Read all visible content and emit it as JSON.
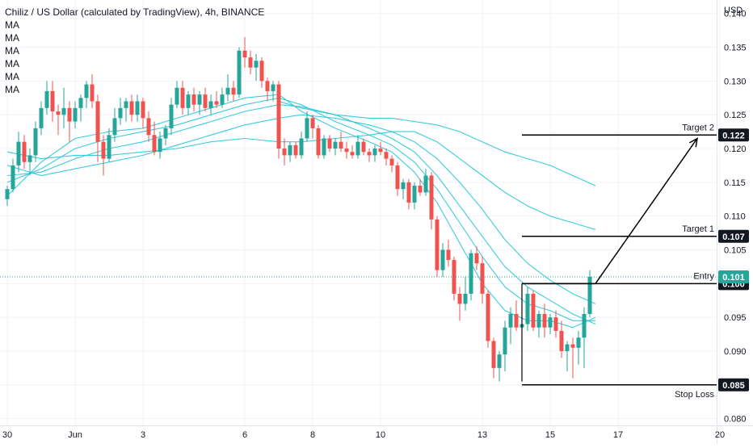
{
  "header": {
    "title": "Chiliz / US Dollar (calculated by TradingView), 4h, BINANCE",
    "indicators": [
      "MA",
      "MA",
      "MA",
      "MA",
      "MA",
      "MA"
    ]
  },
  "chart_data": {
    "type": "candlestick",
    "title": "Chiliz / US Dollar (calculated by TradingView), 4h, BINANCE",
    "y_unit_label": "USD",
    "ylim": [
      0.079,
      0.142
    ],
    "y_ticks": [
      "0.080",
      "0.085",
      "0.090",
      "0.095",
      "0.100",
      "0.105",
      "0.110",
      "0.115",
      "0.120",
      "0.125",
      "0.130",
      "0.135",
      "0.140"
    ],
    "x_ticks": [
      {
        "label": "30",
        "index": 0
      },
      {
        "label": "Jun",
        "index": 12
      },
      {
        "label": "3",
        "index": 24
      },
      {
        "label": "6",
        "index": 42
      },
      {
        "label": "8",
        "index": 54
      },
      {
        "label": "10",
        "index": 66
      },
      {
        "label": "13",
        "index": 84
      },
      {
        "label": "15",
        "index": 96
      },
      {
        "label": "17",
        "index": 108
      },
      {
        "label": "20",
        "index": 126
      }
    ],
    "current_price": 0.101,
    "current_price_label": "0.101",
    "candles": [
      [
        0.1125,
        0.1145,
        0.1115,
        0.114
      ],
      [
        0.114,
        0.1185,
        0.1135,
        0.1175
      ],
      [
        0.1175,
        0.1225,
        0.1165,
        0.121
      ],
      [
        0.121,
        0.122,
        0.117,
        0.118
      ],
      [
        0.118,
        0.12,
        0.116,
        0.119
      ],
      [
        0.119,
        0.124,
        0.118,
        0.123
      ],
      [
        0.123,
        0.127,
        0.122,
        0.126
      ],
      [
        0.126,
        0.13,
        0.125,
        0.1285
      ],
      [
        0.1285,
        0.13,
        0.124,
        0.1255
      ],
      [
        0.1255,
        0.1265,
        0.122,
        0.125
      ],
      [
        0.125,
        0.129,
        0.123,
        0.126
      ],
      [
        0.126,
        0.127,
        0.121,
        0.124
      ],
      [
        0.124,
        0.127,
        0.123,
        0.126
      ],
      [
        0.126,
        0.128,
        0.124,
        0.1275
      ],
      [
        0.1275,
        0.13,
        0.126,
        0.1295
      ],
      [
        0.1295,
        0.131,
        0.126,
        0.127
      ],
      [
        0.127,
        0.128,
        0.118,
        0.121
      ],
      [
        0.121,
        0.122,
        0.116,
        0.1185
      ],
      [
        0.1185,
        0.123,
        0.118,
        0.122
      ],
      [
        0.122,
        0.126,
        0.121,
        0.1245
      ],
      [
        0.1245,
        0.1275,
        0.1235,
        0.126
      ],
      [
        0.126,
        0.1275,
        0.124,
        0.127
      ],
      [
        0.127,
        0.128,
        0.124,
        0.125
      ],
      [
        0.125,
        0.128,
        0.124,
        0.127
      ],
      [
        0.127,
        0.1275,
        0.123,
        0.1245
      ],
      [
        0.1245,
        0.1255,
        0.121,
        0.122
      ],
      [
        0.122,
        0.124,
        0.119,
        0.1195
      ],
      [
        0.1195,
        0.1225,
        0.1185,
        0.1215
      ],
      [
        0.1215,
        0.1235,
        0.1205,
        0.123
      ],
      [
        0.123,
        0.1275,
        0.122,
        0.1265
      ],
      [
        0.1265,
        0.13,
        0.126,
        0.129
      ],
      [
        0.129,
        0.13,
        0.125,
        0.126
      ],
      [
        0.126,
        0.1285,
        0.125,
        0.128
      ],
      [
        0.128,
        0.129,
        0.1255,
        0.1265
      ],
      [
        0.1265,
        0.1285,
        0.125,
        0.128
      ],
      [
        0.128,
        0.129,
        0.1255,
        0.126
      ],
      [
        0.126,
        0.128,
        0.125,
        0.127
      ],
      [
        0.127,
        0.1285,
        0.126,
        0.1265
      ],
      [
        0.1265,
        0.129,
        0.126,
        0.128
      ],
      [
        0.128,
        0.131,
        0.127,
        0.129
      ],
      [
        0.129,
        0.13,
        0.127,
        0.128
      ],
      [
        0.128,
        0.135,
        0.1275,
        0.1345
      ],
      [
        0.1345,
        0.1365,
        0.132,
        0.1335
      ],
      [
        0.1335,
        0.1345,
        0.131,
        0.132
      ],
      [
        0.132,
        0.134,
        0.13,
        0.133
      ],
      [
        0.133,
        0.1335,
        0.129,
        0.13
      ],
      [
        0.13,
        0.1305,
        0.127,
        0.1285
      ],
      [
        0.1285,
        0.13,
        0.127,
        0.1295
      ],
      [
        0.1295,
        0.13,
        0.1185,
        0.12
      ],
      [
        0.12,
        0.1215,
        0.1175,
        0.119
      ],
      [
        0.119,
        0.121,
        0.118,
        0.1205
      ],
      [
        0.1205,
        0.121,
        0.1185,
        0.119
      ],
      [
        0.119,
        0.1225,
        0.1185,
        0.1215
      ],
      [
        0.1215,
        0.1255,
        0.121,
        0.1245
      ],
      [
        0.1245,
        0.125,
        0.1215,
        0.123
      ],
      [
        0.123,
        0.1235,
        0.1185,
        0.119
      ],
      [
        0.119,
        0.122,
        0.1185,
        0.1215
      ],
      [
        0.1215,
        0.122,
        0.1195,
        0.12
      ],
      [
        0.12,
        0.1215,
        0.119,
        0.121
      ],
      [
        0.121,
        0.1225,
        0.1195,
        0.12
      ],
      [
        0.12,
        0.121,
        0.1185,
        0.1195
      ],
      [
        0.1195,
        0.1205,
        0.1185,
        0.119
      ],
      [
        0.119,
        0.122,
        0.1185,
        0.121
      ],
      [
        0.121,
        0.1215,
        0.119,
        0.1195
      ],
      [
        0.1195,
        0.12,
        0.118,
        0.119
      ],
      [
        0.119,
        0.1205,
        0.118,
        0.12
      ],
      [
        0.12,
        0.121,
        0.119,
        0.1195
      ],
      [
        0.1195,
        0.12,
        0.1175,
        0.1185
      ],
      [
        0.1185,
        0.119,
        0.1165,
        0.1175
      ],
      [
        0.1175,
        0.118,
        0.113,
        0.114
      ],
      [
        0.114,
        0.1155,
        0.1125,
        0.115
      ],
      [
        0.115,
        0.1155,
        0.111,
        0.112
      ],
      [
        0.112,
        0.115,
        0.111,
        0.1145
      ],
      [
        0.1145,
        0.1155,
        0.113,
        0.1135
      ],
      [
        0.1135,
        0.117,
        0.113,
        0.116
      ],
      [
        0.116,
        0.1165,
        0.108,
        0.1095
      ],
      [
        0.1095,
        0.11,
        0.101,
        0.102
      ],
      [
        0.102,
        0.106,
        0.101,
        0.105
      ],
      [
        0.105,
        0.1065,
        0.1025,
        0.1035
      ],
      [
        0.1035,
        0.104,
        0.0975,
        0.0985
      ],
      [
        0.0985,
        0.0995,
        0.0945,
        0.097
      ],
      [
        0.097,
        0.101,
        0.096,
        0.0985
      ],
      [
        0.0985,
        0.105,
        0.0975,
        0.1045
      ],
      [
        0.1045,
        0.1055,
        0.102,
        0.103
      ],
      [
        0.103,
        0.104,
        0.097,
        0.0985
      ],
      [
        0.0985,
        0.099,
        0.0905,
        0.0915
      ],
      [
        0.0915,
        0.092,
        0.086,
        0.0875
      ],
      [
        0.0875,
        0.09,
        0.0855,
        0.0895
      ],
      [
        0.0895,
        0.0945,
        0.087,
        0.0935
      ],
      [
        0.0935,
        0.0965,
        0.091,
        0.0955
      ],
      [
        0.0955,
        0.0975,
        0.093,
        0.0935
      ],
      [
        0.0935,
        0.095,
        0.087,
        0.094
      ],
      [
        0.094,
        0.0995,
        0.093,
        0.0985
      ],
      [
        0.0985,
        0.099,
        0.093,
        0.0935
      ],
      [
        0.0935,
        0.096,
        0.092,
        0.0955
      ],
      [
        0.0955,
        0.097,
        0.092,
        0.0935
      ],
      [
        0.0935,
        0.0955,
        0.0925,
        0.095
      ],
      [
        0.095,
        0.096,
        0.092,
        0.093
      ],
      [
        0.093,
        0.0945,
        0.089,
        0.09
      ],
      [
        0.09,
        0.0915,
        0.087,
        0.091
      ],
      [
        0.091,
        0.092,
        0.086,
        0.0905
      ],
      [
        0.0905,
        0.093,
        0.088,
        0.092
      ],
      [
        0.092,
        0.0965,
        0.0875,
        0.0955
      ],
      [
        0.0955,
        0.102,
        0.095,
        0.101
      ]
    ],
    "moving_averages": [
      {
        "name": "MA",
        "color": "#26c6da",
        "points": [
          [
            0,
            0.113
          ],
          [
            6,
            0.118
          ],
          [
            12,
            0.1215
          ],
          [
            18,
            0.1225
          ],
          [
            24,
            0.123
          ],
          [
            30,
            0.1245
          ],
          [
            36,
            0.126
          ],
          [
            42,
            0.1275
          ],
          [
            48,
            0.128
          ],
          [
            52,
            0.1255
          ],
          [
            58,
            0.123
          ],
          [
            64,
            0.121
          ],
          [
            68,
            0.1195
          ],
          [
            72,
            0.1165
          ],
          [
            76,
            0.112
          ],
          [
            80,
            0.106
          ],
          [
            84,
            0.1
          ],
          [
            88,
            0.096
          ],
          [
            92,
            0.0945
          ],
          [
            96,
            0.0945
          ],
          [
            100,
            0.0935
          ],
          [
            104,
            0.095
          ]
        ]
      },
      {
        "name": "MA",
        "color": "#26c6da",
        "points": [
          [
            0,
            0.115
          ],
          [
            6,
            0.117
          ],
          [
            12,
            0.12
          ],
          [
            18,
            0.1215
          ],
          [
            24,
            0.1225
          ],
          [
            30,
            0.1235
          ],
          [
            36,
            0.125
          ],
          [
            42,
            0.1265
          ],
          [
            48,
            0.1275
          ],
          [
            52,
            0.1265
          ],
          [
            58,
            0.124
          ],
          [
            64,
            0.122
          ],
          [
            68,
            0.1205
          ],
          [
            72,
            0.118
          ],
          [
            76,
            0.114
          ],
          [
            80,
            0.109
          ],
          [
            84,
            0.104
          ],
          [
            88,
            0.0995
          ],
          [
            92,
            0.097
          ],
          [
            96,
            0.096
          ],
          [
            100,
            0.0945
          ],
          [
            104,
            0.0945
          ]
        ]
      },
      {
        "name": "MA",
        "color": "#26c6da",
        "points": [
          [
            0,
            0.116
          ],
          [
            6,
            0.1165
          ],
          [
            12,
            0.1185
          ],
          [
            18,
            0.12
          ],
          [
            24,
            0.121
          ],
          [
            30,
            0.1225
          ],
          [
            36,
            0.124
          ],
          [
            42,
            0.1255
          ],
          [
            48,
            0.1265
          ],
          [
            52,
            0.1262
          ],
          [
            58,
            0.125
          ],
          [
            64,
            0.123
          ],
          [
            68,
            0.1215
          ],
          [
            72,
            0.1195
          ],
          [
            76,
            0.116
          ],
          [
            80,
            0.1115
          ],
          [
            84,
            0.107
          ],
          [
            88,
            0.1025
          ],
          [
            92,
            0.0995
          ],
          [
            96,
            0.0975
          ],
          [
            100,
            0.0955
          ],
          [
            104,
            0.094
          ]
        ]
      },
      {
        "name": "MA",
        "color": "#26c6da",
        "points": [
          [
            0,
            0.1175
          ],
          [
            6,
            0.116
          ],
          [
            12,
            0.117
          ],
          [
            18,
            0.118
          ],
          [
            24,
            0.119
          ],
          [
            30,
            0.1205
          ],
          [
            36,
            0.122
          ],
          [
            42,
            0.1235
          ],
          [
            48,
            0.1245
          ],
          [
            52,
            0.125
          ],
          [
            58,
            0.1245
          ],
          [
            64,
            0.1235
          ],
          [
            68,
            0.1225
          ],
          [
            72,
            0.121
          ],
          [
            76,
            0.1185
          ],
          [
            80,
            0.115
          ],
          [
            84,
            0.111
          ],
          [
            88,
            0.1065
          ],
          [
            92,
            0.103
          ],
          [
            96,
            0.1005
          ],
          [
            100,
            0.0985
          ],
          [
            104,
            0.097
          ]
        ]
      },
      {
        "name": "MA",
        "color": "#26c6da",
        "points": [
          [
            0,
            0.1195
          ],
          [
            6,
            0.1185
          ],
          [
            12,
            0.119
          ],
          [
            18,
            0.119
          ],
          [
            24,
            0.1195
          ],
          [
            30,
            0.12
          ],
          [
            36,
            0.121
          ],
          [
            42,
            0.1215
          ],
          [
            48,
            0.121
          ],
          [
            52,
            0.121
          ],
          [
            58,
            0.1215
          ],
          [
            64,
            0.122
          ],
          [
            68,
            0.1225
          ],
          [
            72,
            0.1225
          ],
          [
            76,
            0.121
          ],
          [
            80,
            0.1185
          ],
          [
            84,
            0.116
          ],
          [
            88,
            0.1135
          ],
          [
            92,
            0.1115
          ],
          [
            96,
            0.11
          ],
          [
            100,
            0.109
          ],
          [
            104,
            0.108
          ]
        ]
      },
      {
        "name": "MA",
        "color": "#26c6da",
        "points": [
          [
            48,
            0.127
          ],
          [
            52,
            0.126
          ],
          [
            58,
            0.125
          ],
          [
            64,
            0.1245
          ],
          [
            68,
            0.1245
          ],
          [
            72,
            0.124
          ],
          [
            76,
            0.1235
          ],
          [
            80,
            0.1225
          ],
          [
            84,
            0.121
          ],
          [
            88,
            0.1195
          ],
          [
            92,
            0.1185
          ],
          [
            96,
            0.1175
          ],
          [
            100,
            0.116
          ],
          [
            104,
            0.1145
          ]
        ]
      }
    ],
    "levels": [
      {
        "name": "Target 2",
        "label": "Target 2",
        "price": 0.122,
        "price_label": "0.122",
        "from": 91
      },
      {
        "name": "Target 1",
        "label": "Target 1",
        "price": 0.107,
        "price_label": "0.107",
        "from": 91
      },
      {
        "name": "Entry",
        "label": "Entry",
        "price": 0.1,
        "price_label": "0.100",
        "from": 91
      },
      {
        "name": "Stop Loss",
        "label": "Stop Loss",
        "price": 0.085,
        "price_label": "0.085",
        "from": 91
      }
    ],
    "entry_box": {
      "from": 91,
      "to": 104,
      "price": 0.1,
      "bottom": 0.0855
    },
    "projection": {
      "from": [
        104,
        0.1
      ],
      "to": [
        122,
        0.1215
      ]
    },
    "colors": {
      "up": "#26a69a",
      "down": "#ef5350",
      "ma": "#26c6da",
      "grid": "#f0f3fa",
      "text": "#131722",
      "badge": "#131722",
      "current": "#26a69a"
    }
  }
}
